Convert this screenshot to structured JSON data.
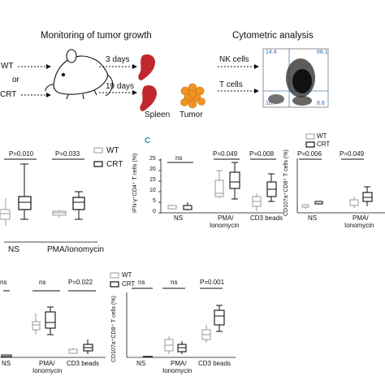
{
  "top": {
    "monitoring_title": "Monitoring of tumor growth",
    "cytometric_title": "Cytometric analysis",
    "wt": "WT",
    "or": "or",
    "crt": "CRT",
    "days_3": "3 days",
    "days_19": "19 days",
    "spleen": "Spleen",
    "tumor": "Tumor",
    "nk_cells": "NK cells",
    "t_cells": "T cells",
    "quad_tl": "14.4",
    "quad_tr": "66.1",
    "quad_bl": "10.7",
    "quad_br": "8.8"
  },
  "legend": {
    "wt": "WT",
    "crt": "CRT"
  },
  "colors": {
    "wt": "#999999",
    "crt": "#111111",
    "panel_label": "#2a8fb8"
  },
  "panels": {
    "b": {
      "groups": [
        "NS",
        "PMA/Ionomycin"
      ],
      "pvalues": [
        "P=0.010",
        "P=0.033"
      ]
    },
    "c": {
      "label": "C",
      "ylabel": "IFN-γ⁺CD4⁺ T cells (%)",
      "yticks": [
        "0",
        "5",
        "10",
        "15",
        "20",
        "25"
      ],
      "groups": [
        "NS",
        "PMA/",
        "Ionomycin",
        "CD3 beads"
      ],
      "pvalues": [
        "ns",
        "P=0.049",
        "P=0.008"
      ]
    },
    "d": {
      "ylabel": "CD107a⁺CD8⁺ T cells (%)",
      "pvalues": [
        "P=0.006",
        "P=0.049"
      ],
      "groups": [
        "NS",
        "PMA/",
        "Ionomycin"
      ]
    },
    "e": {
      "pvalues": [
        "ns",
        "ns",
        "P=0.022"
      ],
      "groups": [
        "NS",
        "PMA/",
        "Ionomycin",
        "CD3 beads"
      ]
    },
    "f": {
      "ylabel": "CD107a⁺CD8⁺ T cells (%)",
      "pvalues": [
        "ns",
        "ns",
        "P=0.001"
      ],
      "groups": [
        "NS",
        "PMA/",
        "Ionomycin",
        "CD3 beads"
      ]
    }
  }
}
